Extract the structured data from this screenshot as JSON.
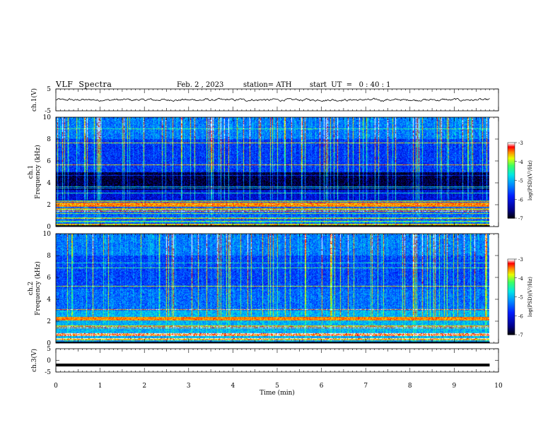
{
  "header": {
    "title": "VLF  Spectra",
    "date": "Feb. 2 , 2023",
    "station": "station= ATH",
    "start_ut": "start  UT  =   0 : 40 : 1"
  },
  "chart_data": [
    {
      "type": "line",
      "panel": "ch1-waveform",
      "ylabel": "ch.1(V)",
      "ylim": [
        -5,
        5
      ],
      "yticks": [
        "5",
        "-5"
      ],
      "x_range": [
        0,
        9.8
      ],
      "mean_value": 0,
      "amplitude": 0.5
    },
    {
      "type": "heatmap",
      "panel": "ch1-spectrogram",
      "ylabel_lines": [
        "ch.1",
        "Frequency  (kHz)"
      ],
      "ylim": [
        0,
        10
      ],
      "yticks": [
        "0",
        "2",
        "4",
        "6",
        "8",
        "10"
      ],
      "x_range": [
        0,
        9.8
      ],
      "colorbar": {
        "label": "log(PSD)(V²/Hz)",
        "ticks": [
          "-3",
          "-4",
          "-5",
          "-6",
          "-7"
        ],
        "range": [
          -7,
          -3
        ]
      },
      "colors": [
        "#000000",
        "#0000aa",
        "#0000ff",
        "#0080ff",
        "#00ffff",
        "#00ff80",
        "#ffff00",
        "#ff8000",
        "#ff0000",
        "#ffffff"
      ]
    },
    {
      "type": "heatmap",
      "panel": "ch2-spectrogram",
      "ylabel_lines": [
        "ch.2",
        "Frequency  (kHz)"
      ],
      "ylim": [
        0,
        10
      ],
      "yticks": [
        "0",
        "2",
        "4",
        "6",
        "8",
        "10"
      ],
      "x_range": [
        0,
        9.8
      ],
      "colorbar": {
        "label": "log(PSD)(V²/Hz)",
        "ticks": [
          "-3",
          "-4",
          "-5",
          "-6",
          "-7"
        ],
        "range": [
          -7,
          -3
        ]
      }
    },
    {
      "type": "line",
      "panel": "ch3-waveform",
      "ylabel": "ch.3(V)",
      "ylim": [
        -5,
        5
      ],
      "yticks": [
        "5",
        "0",
        "-5"
      ],
      "x_range": [
        0,
        9.8
      ],
      "mean_value": -2
    }
  ],
  "x_axis": {
    "label": "Time  (min)",
    "ticks": [
      "0",
      "1",
      "2",
      "3",
      "4",
      "5",
      "6",
      "7",
      "8",
      "9",
      "10"
    ],
    "range": [
      0,
      10
    ]
  }
}
